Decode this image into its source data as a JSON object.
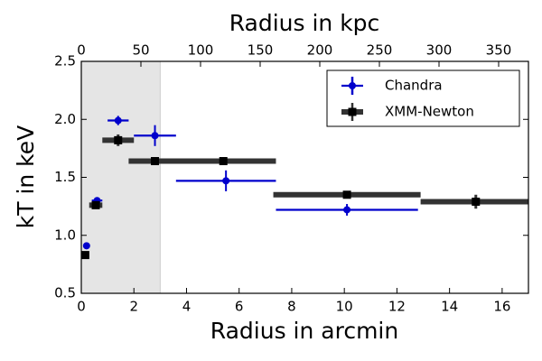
{
  "chart_data": {
    "type": "errorbar",
    "xlabel": "Radius in arcmin",
    "x2label": "Radius in kpc",
    "ylabel": "kT in keV",
    "xlim": [
      0,
      17
    ],
    "xticks": [
      0,
      2,
      4,
      6,
      8,
      10,
      12,
      14,
      16
    ],
    "x2lim": [
      0,
      375
    ],
    "x2ticks": [
      0,
      50,
      100,
      150,
      200,
      250,
      300,
      350
    ],
    "ylim": [
      0.5,
      2.5
    ],
    "yticks": [
      0.5,
      {
        "value": 1.0,
        "label": "1.0"
      },
      1.5,
      {
        "value": 2.0,
        "label": "2.0"
      },
      2.5
    ],
    "shaded_xrange": [
      0,
      3
    ],
    "shade_color": "#e5e5e5",
    "legend": "upper right",
    "series": [
      {
        "name": "Chandra",
        "color": "#0000cc",
        "marker": "circle",
        "x": [
          0.2,
          0.6,
          1.4,
          2.8,
          5.5,
          10.1
        ],
        "values": [
          0.91,
          1.3,
          1.99,
          1.86,
          1.47,
          1.22
        ],
        "xerr": [
          0.05,
          0.2,
          0.4,
          0.8,
          1.9,
          2.7
        ],
        "yerr": [
          0.02,
          0.02,
          0.04,
          0.09,
          0.09,
          0.05
        ]
      },
      {
        "name": "XMM-Newton",
        "color": "#333333",
        "marker": "square",
        "x": [
          0.15,
          0.55,
          1.4,
          2.8,
          5.4,
          10.1,
          15.0
        ],
        "values": [
          0.83,
          1.26,
          1.82,
          1.64,
          1.64,
          1.35,
          1.29
        ],
        "xerr": [
          0.15,
          0.25,
          0.6,
          1.0,
          2.0,
          2.8,
          2.1
        ],
        "yerr": [
          0.03,
          0.03,
          0.05,
          0.02,
          0.02,
          0.02,
          0.06
        ]
      }
    ]
  }
}
